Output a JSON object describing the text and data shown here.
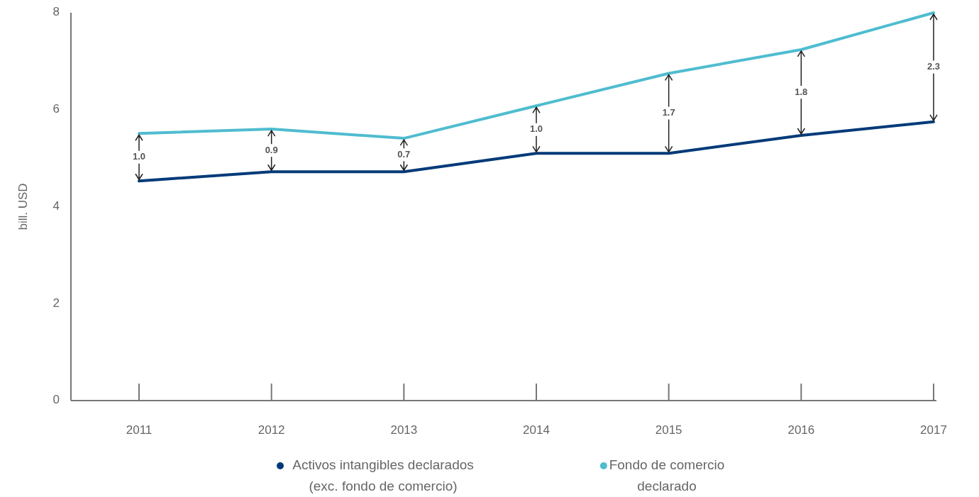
{
  "chart_data": {
    "type": "line",
    "ylabel": "bill. USD",
    "categories": [
      "2011",
      "2012",
      "2013",
      "2014",
      "2015",
      "2016",
      "2017"
    ],
    "series": [
      {
        "name": "Activos intangibles declarados (exc. fondo de comercio)",
        "color": "#003a78",
        "values": [
          4.53,
          4.72,
          4.72,
          5.1,
          5.1,
          5.47,
          5.75
        ]
      },
      {
        "name": "Fondo de comercio declarado",
        "color": "#4fbcd0",
        "values": [
          5.51,
          5.6,
          5.41,
          6.08,
          6.75,
          7.24,
          8.0
        ]
      }
    ],
    "ylim": [
      0,
      8
    ],
    "yticks": [
      0,
      2,
      4,
      6,
      8
    ],
    "grid": false,
    "legend": "bottom",
    "marker": "none",
    "line_style": "solid",
    "annotations": [
      {
        "text": "1.0",
        "x": "2011",
        "y": 5.02
      },
      {
        "text": "0.9",
        "x": "2012",
        "y": 5.16
      },
      {
        "text": "0.7",
        "x": "2013",
        "y": 5.07
      },
      {
        "text": "1.0",
        "x": "2014",
        "y": 5.59
      },
      {
        "text": "1.7",
        "x": "2015",
        "y": 5.93
      },
      {
        "text": "1.8",
        "x": "2016",
        "y": 6.36
      },
      {
        "text": "2.3",
        "x": "2017",
        "y": 6.88
      }
    ]
  }
}
